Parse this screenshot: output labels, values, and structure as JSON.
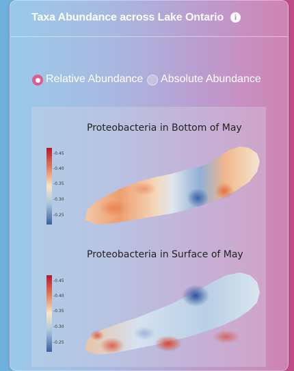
{
  "header": {
    "title": "Taxa Abundance across Lake Ontario",
    "info_icon": "info-icon"
  },
  "abundance_mode": {
    "options": [
      {
        "label": "Relative Abundance",
        "selected": true
      },
      {
        "label": "Absolute Abundance",
        "selected": false
      }
    ]
  },
  "maps": [
    {
      "title": "Proteobacteria in Bottom of May",
      "colorbar_ticks": [
        "0.45",
        "0.40",
        "0.35",
        "0.30",
        "0.25"
      ]
    },
    {
      "title": "Proteobacteria in Surface of May",
      "colorbar_ticks": [
        "0.45",
        "0.40",
        "0.35",
        "0.30",
        "0.25"
      ]
    }
  ],
  "colors": {
    "accent": "#e05b8f",
    "high": "#c0392b",
    "mid": "#f2f0e6",
    "low": "#2c4a8f"
  }
}
